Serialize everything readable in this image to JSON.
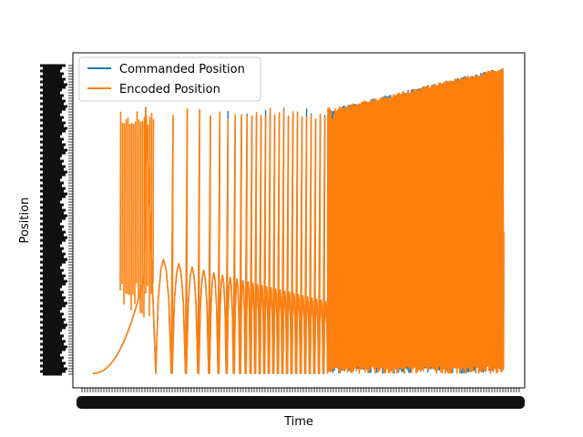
{
  "chart_data": {
    "type": "line",
    "title": "",
    "xlabel": "Time",
    "ylabel": "Position",
    "tick_labels": "dense, overlapping and illegible on both axes",
    "legend": {
      "placement": "upper-left"
    },
    "grid": false,
    "series": [
      {
        "name": "Commanded Position",
        "color": "#1f77b4"
      },
      {
        "name": "Encoded Position",
        "color": "#ff7f0e"
      }
    ]
  }
}
